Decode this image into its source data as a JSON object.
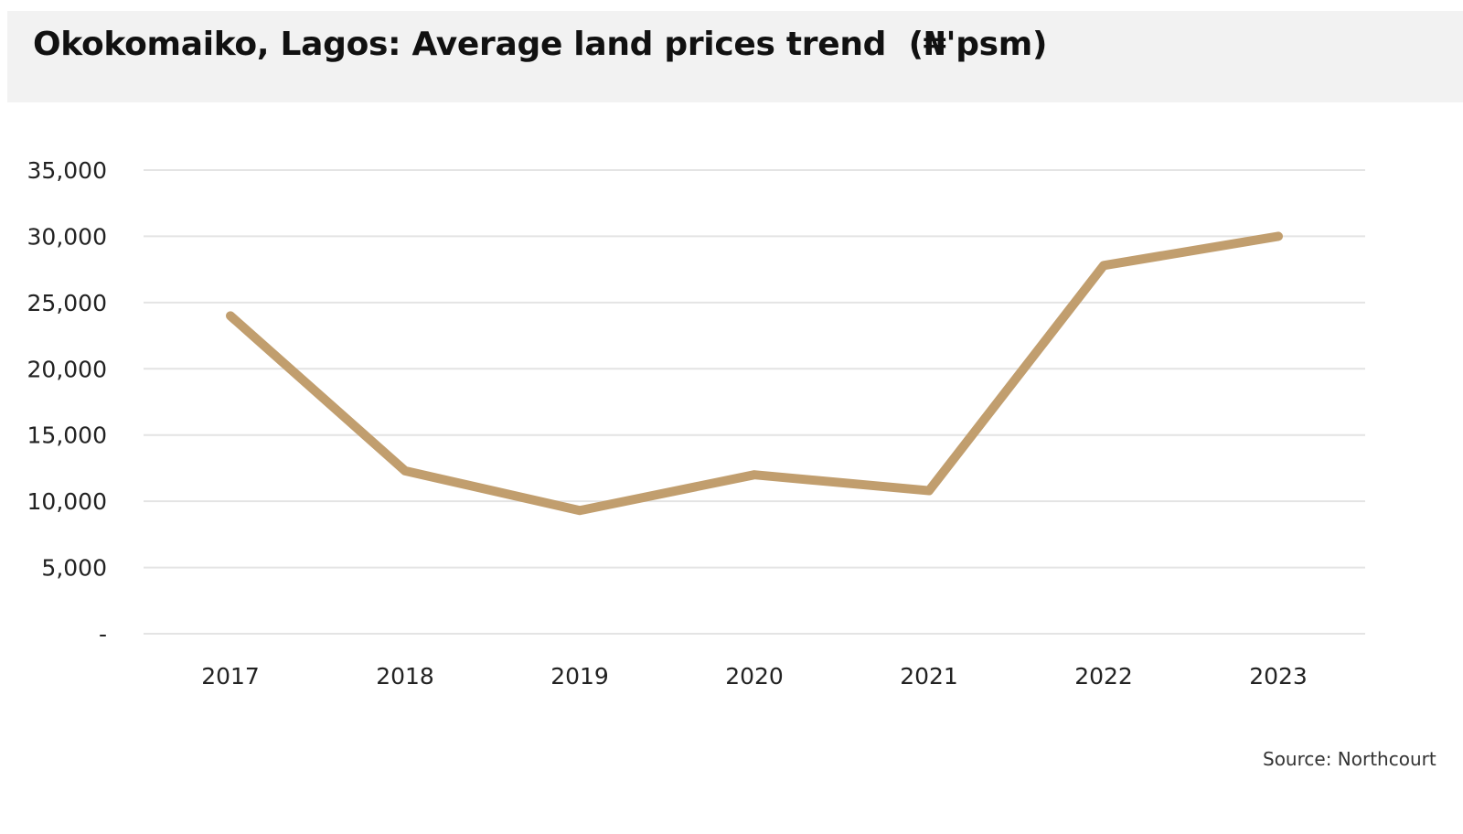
{
  "title": "Okokomaiko, Lagos: Average land prices trend  (₦'psm)",
  "source": "Source: Northcourt",
  "colors": {
    "line": "#c19e6e",
    "grid": "#e4e4e4",
    "title_background": "#f2f2f2"
  },
  "chart_data": {
    "type": "line",
    "title": "Okokomaiko, Lagos: Average land prices trend  (₦'psm)",
    "xlabel": "",
    "ylabel": "",
    "categories": [
      "2017",
      "2018",
      "2019",
      "2020",
      "2021",
      "2022",
      "2023"
    ],
    "series": [
      {
        "values": [
          24000,
          12300,
          9300,
          12000,
          10800,
          27800,
          30000
        ]
      }
    ],
    "y_ticks": [
      0,
      5000,
      10000,
      15000,
      20000,
      25000,
      30000,
      35000
    ],
    "y_tick_labels": [
      "-",
      "5,000",
      "10,000",
      "15,000",
      "20,000",
      "25,000",
      "30,000",
      "35,000"
    ],
    "ylim": [
      0,
      35000
    ],
    "grid": true,
    "legend": "none"
  }
}
